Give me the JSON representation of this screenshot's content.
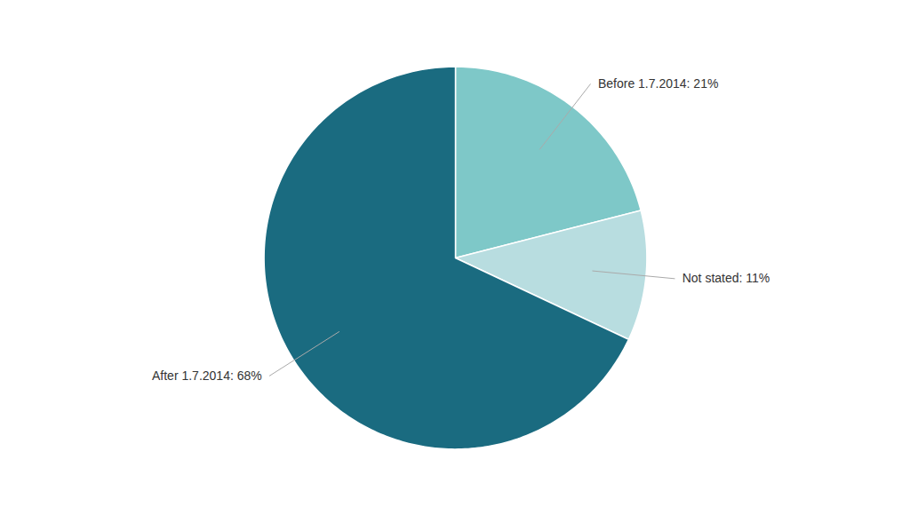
{
  "chart_data": {
    "type": "pie",
    "categories": [
      "Before 1.7.2014: 21%",
      "Not stated: 11%",
      "After 1.7.2014: 68%"
    ],
    "values": [
      21,
      11,
      68
    ],
    "colors": [
      "#7ec8c8",
      "#b8dde0",
      "#1a6b80"
    ]
  }
}
